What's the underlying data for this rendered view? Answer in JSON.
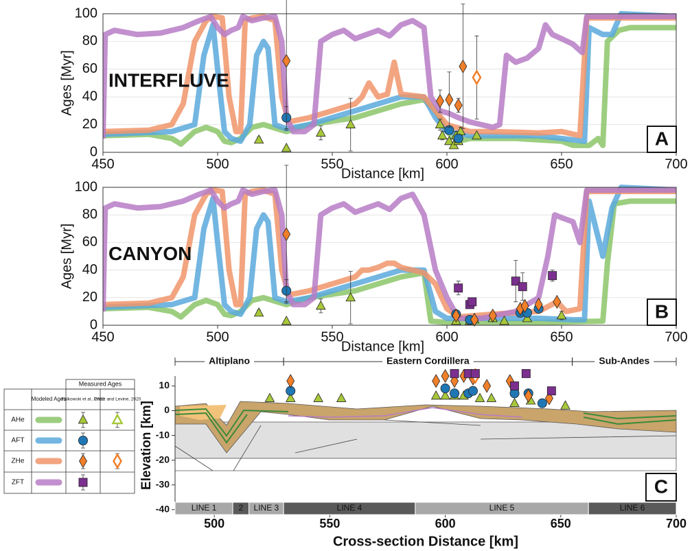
{
  "chart_data": [
    {
      "type": "line",
      "panel": "A",
      "annotation": "INTERFLUVE",
      "xlabel": "Distance [km]",
      "ylabel": "Ages [Myr]",
      "xlim": [
        450,
        700
      ],
      "ylim": [
        0,
        100
      ],
      "xticks": [
        450,
        500,
        550,
        600,
        650,
        700
      ],
      "yticks": [
        0,
        20,
        40,
        60,
        80,
        100
      ],
      "grid": true,
      "series": [
        {
          "name": "AHe",
          "color": "#8cc56a",
          "x": [
            450,
            470,
            480,
            484,
            490,
            495,
            500,
            503,
            506,
            510,
            515,
            520,
            530,
            540,
            560,
            580,
            590,
            595,
            600,
            605,
            610,
            630,
            650,
            655,
            662,
            666,
            668,
            670,
            675,
            680,
            700
          ],
          "values": [
            12,
            13,
            10,
            6,
            15,
            18,
            15,
            8,
            7,
            10,
            18,
            20,
            15,
            20,
            25,
            35,
            38,
            30,
            15,
            8,
            10,
            10,
            8,
            5,
            5,
            10,
            5,
            80,
            88,
            90,
            90
          ]
        },
        {
          "name": "AFT",
          "color": "#5aa9dc",
          "x": [
            450,
            480,
            490,
            494,
            498,
            500,
            503,
            506,
            510,
            514,
            517,
            520,
            522,
            525,
            530,
            540,
            560,
            580,
            590,
            595,
            600,
            610,
            640,
            650,
            660,
            662,
            668,
            672,
            676,
            700
          ],
          "values": [
            13,
            15,
            20,
            70,
            92,
            60,
            15,
            10,
            8,
            20,
            70,
            80,
            75,
            20,
            17,
            20,
            30,
            40,
            40,
            25,
            15,
            12,
            12,
            10,
            8,
            90,
            85,
            85,
            100,
            98
          ]
        },
        {
          "name": "ZHe",
          "color": "#f0956a",
          "x": [
            450,
            470,
            480,
            485,
            490,
            495,
            498,
            502,
            505,
            508,
            510,
            512,
            515,
            520,
            525,
            528,
            531,
            540,
            550,
            560,
            563,
            566,
            570,
            574,
            577,
            580,
            590,
            595,
            600,
            610,
            620,
            640,
            650,
            658,
            661,
            680,
            700
          ],
          "values": [
            15,
            16,
            20,
            35,
            80,
            95,
            98,
            97,
            40,
            15,
            15,
            95,
            97,
            98,
            95,
            40,
            22,
            25,
            30,
            35,
            40,
            50,
            40,
            42,
            65,
            42,
            40,
            30,
            20,
            15,
            15,
            14,
            15,
            12,
            97,
            97,
            97
          ]
        },
        {
          "name": "ZFT",
          "color": "#b77cc6",
          "x": [
            450,
            451,
            455,
            465,
            475,
            485,
            492,
            497,
            500,
            503,
            506,
            509,
            511,
            515,
            520,
            525,
            528,
            530,
            533,
            538,
            542,
            545,
            550,
            555,
            560,
            565,
            570,
            575,
            580,
            585,
            590,
            593,
            597,
            601,
            605,
            610,
            620,
            623,
            626,
            630,
            635,
            640,
            643,
            646,
            650,
            655,
            659,
            661,
            670,
            680,
            700
          ],
          "values": [
            10,
            85,
            88,
            85,
            86,
            90,
            95,
            98,
            90,
            85,
            88,
            90,
            98,
            95,
            97,
            98,
            80,
            25,
            15,
            15,
            20,
            80,
            85,
            88,
            82,
            85,
            88,
            84,
            92,
            95,
            90,
            40,
            30,
            28,
            25,
            22,
            18,
            20,
            70,
            65,
            68,
            75,
            92,
            85,
            82,
            78,
            72,
            98,
            98,
            98,
            98
          ]
        }
      ],
      "measured": [
        {
          "marker": "triangle",
          "color": "#a8c83a",
          "x": [
            518,
            530,
            545,
            558,
            597,
            598,
            601,
            603,
            604,
            605,
            606,
            613
          ],
          "values": [
            9,
            3,
            14,
            20,
            20,
            12,
            8,
            5,
            12,
            8,
            15,
            12
          ],
          "errors": [
            2,
            0,
            5,
            19,
            4,
            3,
            2,
            2,
            3,
            2,
            3,
            1
          ]
        },
        {
          "marker": "circle",
          "color": "#1f77b4",
          "x": [
            530,
            601,
            605
          ],
          "values": [
            25,
            16,
            10
          ],
          "errors": [
            8,
            3,
            3
          ]
        },
        {
          "marker": "diamond",
          "color": "#f07f2a",
          "x": [
            530,
            597,
            601,
            605,
            607
          ],
          "values": [
            66,
            37,
            38,
            34,
            62
          ],
          "errors": [
            50,
            8,
            20,
            5,
            45
          ]
        },
        {
          "marker": "diamond",
          "open": true,
          "color": "#f07f2a",
          "x": [
            613
          ],
          "values": [
            54
          ],
          "errors": [
            30
          ]
        }
      ]
    },
    {
      "type": "line",
      "panel": "B",
      "annotation": "CANYON",
      "xlabel": "Distance [km]",
      "ylabel": "Ages [Myr]",
      "xlim": [
        450,
        700
      ],
      "ylim": [
        0,
        100
      ],
      "xticks": [
        450,
        500,
        550,
        600,
        650,
        700
      ],
      "yticks": [
        0,
        20,
        40,
        60,
        80,
        100
      ],
      "grid": true,
      "series": [
        {
          "name": "AHe",
          "color": "#8cc56a",
          "x": [
            450,
            470,
            480,
            484,
            490,
            495,
            500,
            503,
            506,
            510,
            515,
            520,
            530,
            540,
            560,
            580,
            590,
            593,
            600,
            640,
            668,
            670,
            673,
            680,
            700
          ],
          "values": [
            12,
            13,
            10,
            6,
            15,
            18,
            15,
            8,
            7,
            10,
            18,
            20,
            15,
            20,
            25,
            35,
            38,
            3,
            2,
            2,
            3,
            45,
            88,
            90,
            90
          ]
        },
        {
          "name": "AFT",
          "color": "#5aa9dc",
          "x": [
            450,
            480,
            490,
            494,
            498,
            500,
            503,
            506,
            510,
            514,
            517,
            520,
            522,
            525,
            530,
            540,
            560,
            580,
            590,
            595,
            600,
            640,
            655,
            660,
            662,
            668,
            672,
            676,
            700
          ],
          "values": [
            13,
            15,
            20,
            70,
            92,
            60,
            15,
            10,
            8,
            20,
            70,
            80,
            75,
            20,
            17,
            20,
            30,
            40,
            40,
            10,
            5,
            5,
            4,
            4,
            90,
            50,
            85,
            100,
            98
          ]
        },
        {
          "name": "ZHe",
          "color": "#f0956a",
          "x": [
            450,
            470,
            480,
            485,
            490,
            495,
            498,
            502,
            505,
            508,
            510,
            512,
            515,
            520,
            525,
            528,
            531,
            540,
            550,
            560,
            563,
            566,
            570,
            574,
            577,
            580,
            590,
            595,
            600,
            605,
            620,
            640,
            648,
            652,
            658,
            661,
            680,
            700
          ],
          "values": [
            15,
            16,
            20,
            35,
            80,
            95,
            98,
            97,
            40,
            15,
            15,
            95,
            97,
            98,
            95,
            40,
            22,
            25,
            30,
            35,
            40,
            40,
            42,
            45,
            45,
            42,
            38,
            30,
            12,
            6,
            8,
            10,
            17,
            10,
            12,
            97,
            97,
            97
          ]
        },
        {
          "name": "ZFT",
          "color": "#b77cc6",
          "x": [
            450,
            451,
            455,
            465,
            475,
            485,
            492,
            497,
            500,
            503,
            506,
            509,
            511,
            515,
            520,
            525,
            528,
            530,
            533,
            538,
            542,
            545,
            550,
            555,
            560,
            565,
            570,
            575,
            580,
            585,
            590,
            595,
            600,
            605,
            615,
            630,
            640,
            644,
            647,
            650,
            655,
            658,
            661,
            670,
            680,
            700
          ],
          "values": [
            10,
            85,
            88,
            85,
            86,
            90,
            95,
            98,
            90,
            85,
            88,
            90,
            98,
            95,
            97,
            98,
            80,
            25,
            15,
            15,
            20,
            80,
            85,
            88,
            82,
            85,
            88,
            84,
            92,
            95,
            80,
            40,
            20,
            5,
            5,
            10,
            20,
            50,
            80,
            78,
            75,
            60,
            98,
            98,
            98,
            98
          ]
        }
      ],
      "measured": [
        {
          "marker": "triangle",
          "color": "#a8c83a",
          "x": [
            518,
            530,
            545,
            558,
            604,
            610,
            612,
            620,
            625,
            635,
            650
          ],
          "values": [
            9,
            3,
            14,
            20,
            3,
            3,
            4,
            5,
            3,
            5,
            7
          ],
          "errors": [
            2,
            0,
            5,
            19,
            1,
            1,
            1,
            1,
            1,
            1,
            3
          ]
        },
        {
          "marker": "circle",
          "color": "#1f77b4",
          "x": [
            530,
            604,
            610,
            632,
            635,
            640
          ],
          "values": [
            25,
            8,
            4,
            9,
            9,
            12
          ],
          "errors": [
            8,
            2,
            1,
            2,
            2,
            2
          ]
        },
        {
          "marker": "diamond",
          "color": "#f07f2a",
          "x": [
            530,
            604,
            612,
            620,
            632,
            634,
            640,
            648
          ],
          "values": [
            66,
            7,
            4,
            7,
            12,
            14,
            15,
            17
          ],
          "errors": [
            50,
            2,
            1,
            2,
            2,
            2,
            2,
            2
          ]
        },
        {
          "marker": "square",
          "color": "#7b2f8e",
          "x": [
            605,
            610,
            611,
            630,
            633,
            646
          ],
          "values": [
            27,
            15,
            17,
            32,
            28,
            36
          ],
          "errors": [
            5,
            2,
            2,
            15,
            10,
            4
          ]
        }
      ]
    },
    {
      "type": "cross-section",
      "panel": "C",
      "xlabel": "Cross-section Distance [km]",
      "ylabel": "Elevation [km]",
      "xlim": [
        483,
        700
      ],
      "ylim": [
        -42,
        14
      ],
      "xticks": [
        500,
        550,
        600,
        650,
        700
      ],
      "yticks": [
        10,
        0,
        -10,
        -20,
        -30,
        -40
      ],
      "regions": [
        {
          "label": "Altiplano",
          "start": 483,
          "end": 530
        },
        {
          "label": "Eastern Cordillera",
          "start": 530,
          "end": 655
        },
        {
          "label": "Sub-Andes",
          "start": 655,
          "end": 700
        }
      ],
      "segments": [
        {
          "label": "LINE 1",
          "start": 483,
          "end": 508
        },
        {
          "label": "2",
          "start": 508,
          "end": 515
        },
        {
          "label": "LINE 3",
          "start": 515,
          "end": 530
        },
        {
          "label": "LINE 4",
          "start": 530,
          "end": 587
        },
        {
          "label": "LINE 5",
          "start": 587,
          "end": 662
        },
        {
          "label": "LINE 6",
          "start": 662,
          "end": 700
        }
      ],
      "measured": [
        {
          "marker": "triangle",
          "color": "#a8c83a",
          "x": [
            524,
            533,
            545,
            555,
            596,
            600,
            604,
            608,
            615,
            620,
            630,
            637,
            652
          ],
          "values": [
            5,
            5,
            5,
            5,
            6,
            6,
            6,
            6,
            5,
            5,
            3,
            4,
            2
          ]
        },
        {
          "marker": "circle",
          "color": "#1f77b4",
          "x": [
            533,
            600,
            604,
            610,
            612,
            630,
            636,
            642
          ],
          "values": [
            8,
            9,
            7,
            7,
            8,
            7,
            7,
            3
          ]
        },
        {
          "marker": "diamond",
          "color": "#f07f2a",
          "x": [
            533,
            596,
            600,
            604,
            608,
            612,
            618,
            628,
            636,
            645
          ],
          "values": [
            12,
            12,
            14,
            12,
            14,
            13,
            10,
            12,
            6,
            5
          ]
        },
        {
          "marker": "diamond",
          "open": true,
          "color": "#f07f2a",
          "x": [
            613
          ],
          "values": [
            14
          ]
        },
        {
          "marker": "square",
          "color": "#7b2f8e",
          "x": [
            604,
            610,
            613,
            630,
            635,
            646
          ],
          "values": [
            15,
            15,
            15,
            10,
            15,
            8
          ]
        }
      ]
    }
  ],
  "legend": {
    "measured_header": "Measured Ages",
    "columns": [
      "Modeled Ages",
      "Falkowski et al., 2023",
      "Perez and Levine, 2020"
    ]
  }
}
